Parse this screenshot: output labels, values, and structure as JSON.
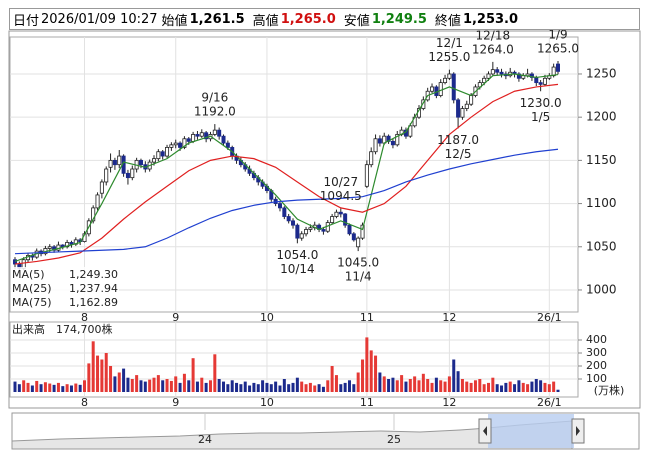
{
  "header": {
    "items": [
      {
        "label": "日付",
        "value": "2026/01/09 10:27"
      },
      {
        "label": "始値",
        "value": "1,261.5",
        "color": "#000000"
      },
      {
        "label": "高値",
        "value": "1,265.0",
        "color": "#d01010"
      },
      {
        "label": "安値",
        "value": "1,249.5",
        "color": "#108010"
      },
      {
        "label": "終値",
        "value": "1,253.0",
        "color": "#000000"
      }
    ]
  },
  "chart_data": {
    "type": "candlestick",
    "candles": [
      [
        1035,
        1038,
        1024,
        1030
      ],
      [
        1030,
        1033,
        1020,
        1025
      ],
      [
        1025,
        1038,
        1023,
        1035
      ],
      [
        1035,
        1043,
        1032,
        1040
      ],
      [
        1040,
        1042,
        1034,
        1038
      ],
      [
        1038,
        1048,
        1036,
        1045
      ],
      [
        1045,
        1047,
        1039,
        1042
      ],
      [
        1042,
        1051,
        1040,
        1048
      ],
      [
        1048,
        1053,
        1044,
        1050
      ],
      [
        1050,
        1052,
        1043,
        1046
      ],
      [
        1046,
        1056,
        1044,
        1052
      ],
      [
        1052,
        1053,
        1047,
        1050
      ],
      [
        1050,
        1058,
        1048,
        1055
      ],
      [
        1055,
        1057,
        1049,
        1053
      ],
      [
        1053,
        1061,
        1051,
        1058
      ],
      [
        1058,
        1060,
        1052,
        1056
      ],
      [
        1056,
        1068,
        1055,
        1065
      ],
      [
        1065,
        1083,
        1062,
        1080
      ],
      [
        1080,
        1098,
        1077,
        1095
      ],
      [
        1095,
        1113,
        1092,
        1110
      ],
      [
        1112,
        1128,
        1106,
        1125
      ],
      [
        1125,
        1143,
        1121,
        1140
      ],
      [
        1142,
        1158,
        1136,
        1150
      ],
      [
        1150,
        1153,
        1139,
        1145
      ],
      [
        1145,
        1162,
        1141,
        1155
      ],
      [
        1155,
        1157,
        1131,
        1135
      ],
      [
        1135,
        1139,
        1122,
        1130
      ],
      [
        1130,
        1144,
        1127,
        1140
      ],
      [
        1140,
        1153,
        1136,
        1150
      ],
      [
        1150,
        1152,
        1141,
        1145
      ],
      [
        1145,
        1149,
        1136,
        1140
      ],
      [
        1140,
        1151,
        1137,
        1148
      ],
      [
        1148,
        1156,
        1144,
        1152
      ],
      [
        1152,
        1163,
        1149,
        1160
      ],
      [
        1160,
        1162,
        1151,
        1155
      ],
      [
        1155,
        1168,
        1153,
        1165
      ],
      [
        1165,
        1171,
        1161,
        1168
      ],
      [
        1168,
        1174,
        1164,
        1170
      ],
      [
        1170,
        1172,
        1161,
        1165
      ],
      [
        1165,
        1178,
        1163,
        1175
      ],
      [
        1175,
        1177,
        1168,
        1172
      ],
      [
        1172,
        1183,
        1170,
        1180
      ],
      [
        1180,
        1184,
        1174,
        1178
      ],
      [
        1178,
        1186,
        1176,
        1182
      ],
      [
        1182,
        1184,
        1171,
        1175
      ],
      [
        1175,
        1183,
        1172,
        1180
      ],
      [
        1180,
        1192,
        1178,
        1185
      ],
      [
        1185,
        1188,
        1174,
        1178
      ],
      [
        1178,
        1180,
        1167,
        1170
      ],
      [
        1170,
        1173,
        1162,
        1165
      ],
      [
        1165,
        1167,
        1151,
        1155
      ],
      [
        1155,
        1158,
        1146,
        1150
      ],
      [
        1150,
        1154,
        1142,
        1145
      ],
      [
        1145,
        1148,
        1137,
        1140
      ],
      [
        1140,
        1144,
        1132,
        1135
      ],
      [
        1135,
        1138,
        1127,
        1130
      ],
      [
        1130,
        1133,
        1121,
        1125
      ],
      [
        1125,
        1128,
        1117,
        1120
      ],
      [
        1120,
        1123,
        1112,
        1115
      ],
      [
        1115,
        1117,
        1102,
        1105
      ],
      [
        1105,
        1108,
        1097,
        1100
      ],
      [
        1100,
        1103,
        1091,
        1095
      ],
      [
        1095,
        1097,
        1082,
        1085
      ],
      [
        1085,
        1088,
        1077,
        1080
      ],
      [
        1080,
        1083,
        1071,
        1075
      ],
      [
        1075,
        1077,
        1054,
        1060
      ],
      [
        1060,
        1068,
        1057,
        1065
      ],
      [
        1065,
        1073,
        1062,
        1070
      ],
      [
        1070,
        1076,
        1067,
        1072
      ],
      [
        1072,
        1079,
        1069,
        1075
      ],
      [
        1075,
        1077,
        1067,
        1070
      ],
      [
        1070,
        1073,
        1064,
        1068
      ],
      [
        1068,
        1081,
        1066,
        1078
      ],
      [
        1078,
        1088,
        1076,
        1085
      ],
      [
        1085,
        1093,
        1083,
        1090
      ],
      [
        1090,
        1094.5,
        1084,
        1088
      ],
      [
        1088,
        1089,
        1072,
        1075
      ],
      [
        1075,
        1077,
        1063,
        1065
      ],
      [
        1065,
        1067,
        1056,
        1058
      ],
      [
        1050,
        1062,
        1045,
        1060
      ],
      [
        1060,
        1078,
        1058,
        1075
      ],
      [
        1120,
        1150,
        1118,
        1145
      ],
      [
        1145,
        1165,
        1142,
        1160
      ],
      [
        1160,
        1180,
        1157,
        1175
      ],
      [
        1175,
        1179,
        1166,
        1170
      ],
      [
        1170,
        1182,
        1168,
        1178
      ],
      [
        1178,
        1180,
        1169,
        1172
      ],
      [
        1172,
        1175,
        1164,
        1168
      ],
      [
        1168,
        1184,
        1166,
        1180
      ],
      [
        1180,
        1189,
        1178,
        1185
      ],
      [
        1185,
        1188,
        1175,
        1178
      ],
      [
        1178,
        1193,
        1176,
        1190
      ],
      [
        1190,
        1204,
        1188,
        1200
      ],
      [
        1200,
        1214,
        1198,
        1210
      ],
      [
        1210,
        1224,
        1208,
        1220
      ],
      [
        1220,
        1234,
        1218,
        1230
      ],
      [
        1230,
        1239,
        1228,
        1235
      ],
      [
        1235,
        1237,
        1222,
        1225
      ],
      [
        1225,
        1244,
        1223,
        1240
      ],
      [
        1240,
        1249,
        1238,
        1245
      ],
      [
        1245,
        1255,
        1243,
        1250
      ],
      [
        1250,
        1252,
        1216,
        1220
      ],
      [
        1220,
        1222,
        1187,
        1200
      ],
      [
        1200,
        1213,
        1197,
        1210
      ],
      [
        1210,
        1219,
        1207,
        1215
      ],
      [
        1215,
        1228,
        1213,
        1225
      ],
      [
        1225,
        1238,
        1223,
        1235
      ],
      [
        1235,
        1243,
        1232,
        1240
      ],
      [
        1240,
        1248,
        1237,
        1245
      ],
      [
        1245,
        1253,
        1242,
        1250
      ],
      [
        1250,
        1264,
        1248,
        1255
      ],
      [
        1255,
        1258,
        1248,
        1252
      ],
      [
        1252,
        1256,
        1246,
        1250
      ],
      [
        1250,
        1253,
        1244,
        1248
      ],
      [
        1248,
        1257,
        1246,
        1252
      ],
      [
        1252,
        1254,
        1246,
        1250
      ],
      [
        1250,
        1252,
        1241,
        1245
      ],
      [
        1245,
        1251,
        1243,
        1248
      ],
      [
        1248,
        1256,
        1246,
        1250
      ],
      [
        1250,
        1252,
        1242,
        1246
      ],
      [
        1246,
        1248,
        1236,
        1240
      ],
      [
        1240,
        1243,
        1230,
        1238
      ],
      [
        1238,
        1249,
        1236,
        1245
      ],
      [
        1245,
        1251,
        1243,
        1248
      ],
      [
        1248,
        1262,
        1246,
        1258
      ],
      [
        1261.5,
        1265,
        1249.5,
        1253
      ]
    ],
    "up_color": "#ffffff",
    "down_color": "#1c2a8c",
    "ylim": [
      974.5,
      1292.8
    ],
    "yticks": [
      1000,
      1050,
      1100,
      1150,
      1200,
      1250
    ],
    "grid": true,
    "xticks": [
      {
        "value": 16,
        "label": "8"
      },
      {
        "value": 37,
        "label": "9"
      },
      {
        "value": 58,
        "label": "10"
      },
      {
        "value": 81,
        "label": "11"
      },
      {
        "value": 100,
        "label": "12"
      },
      {
        "value": 123,
        "label": "26/1"
      }
    ],
    "ma_x": [
      0,
      5,
      10,
      15,
      20,
      25,
      30,
      35,
      40,
      45,
      50,
      55,
      60,
      65,
      70,
      75,
      80,
      85,
      90,
      95,
      100,
      105,
      110,
      115,
      120,
      125
    ],
    "series": [
      {
        "name": "MA(5)",
        "color": "#2e8b2e",
        "legend_value": "1,249.30",
        "values": [
          1033,
          1042,
          1048,
          1055,
          1100,
          1148,
          1142,
          1152,
          1170,
          1178,
          1160,
          1135,
          1110,
          1082,
          1070,
          1080,
          1070,
          1170,
          1183,
          1225,
          1235,
          1225,
          1248,
          1250,
          1246,
          1249.3
        ]
      },
      {
        "name": "MA(25)",
        "color": "#e02020",
        "legend_value": "1,237.94",
        "values": [
          1030,
          1033,
          1037,
          1043,
          1060,
          1082,
          1102,
          1120,
          1138,
          1150,
          1155,
          1152,
          1142,
          1125,
          1108,
          1095,
          1090,
          1100,
          1120,
          1150,
          1180,
          1200,
          1218,
          1230,
          1235,
          1237.94
        ]
      },
      {
        "name": "MA(75)",
        "color": "#2040d0",
        "legend_value": "1,162.89",
        "values": [
          1042,
          1043,
          1044,
          1045,
          1046,
          1047,
          1050,
          1060,
          1072,
          1083,
          1092,
          1098,
          1102,
          1104,
          1105,
          1106,
          1108,
          1115,
          1125,
          1133,
          1140,
          1146,
          1151,
          1156,
          1160,
          1162.89
        ]
      }
    ],
    "annotations": [
      {
        "date": "9/16",
        "value": 1192,
        "label": "1192.0"
      },
      {
        "date": "10/14",
        "value": 1054,
        "label": "1054.0"
      },
      {
        "date": "10/27",
        "value": 1094.5,
        "label": "1094.5"
      },
      {
        "date": "11/4",
        "value": 1045,
        "label": "1045.0"
      },
      {
        "date": "12/1",
        "value": 1255,
        "label": "1255.0"
      },
      {
        "date": "12/5",
        "value": 1187,
        "label": "1187.0"
      },
      {
        "date": "12/18",
        "value": 1264,
        "label": "1264.0"
      },
      {
        "date": "1/9",
        "value": 1265,
        "label": "1265.0"
      },
      {
        "date": "1/5",
        "value": 1230,
        "label": "1230.0"
      }
    ],
    "volume": {
      "title": "出来高",
      "total": "174,700株",
      "unit": "(万株)",
      "up_color": "#e53935",
      "down_color": "#1c2a8c",
      "ylim": [
        -38.5,
        538.5
      ],
      "yticks": [
        100,
        200,
        300,
        400
      ],
      "values": [
        80,
        60,
        90,
        70,
        50,
        85,
        60,
        75,
        65,
        55,
        70,
        45,
        60,
        50,
        65,
        55,
        90,
        220,
        390,
        280,
        250,
        300,
        200,
        120,
        150,
        180,
        110,
        100,
        130,
        90,
        80,
        95,
        110,
        130,
        90,
        100,
        85,
        120,
        70,
        140,
        90,
        260,
        80,
        110,
        70,
        90,
        290,
        100,
        80,
        60,
        90,
        70,
        60,
        80,
        50,
        70,
        60,
        90,
        70,
        60,
        80,
        50,
        100,
        60,
        70,
        110,
        80,
        60,
        70,
        50,
        60,
        40,
        90,
        200,
        130,
        60,
        70,
        90,
        60,
        150,
        250,
        420,
        320,
        280,
        150,
        120,
        100,
        110,
        90,
        130,
        80,
        100,
        120,
        90,
        140,
        100,
        70,
        110,
        90,
        80,
        120,
        250,
        160,
        100,
        80,
        70,
        90,
        100,
        60,
        70,
        110,
        60,
        50,
        70,
        80,
        60,
        90,
        70,
        60,
        80,
        100,
        90,
        70,
        60,
        80,
        17.47
      ]
    }
  },
  "navigator": {
    "labels": [
      "24",
      "25"
    ]
  }
}
